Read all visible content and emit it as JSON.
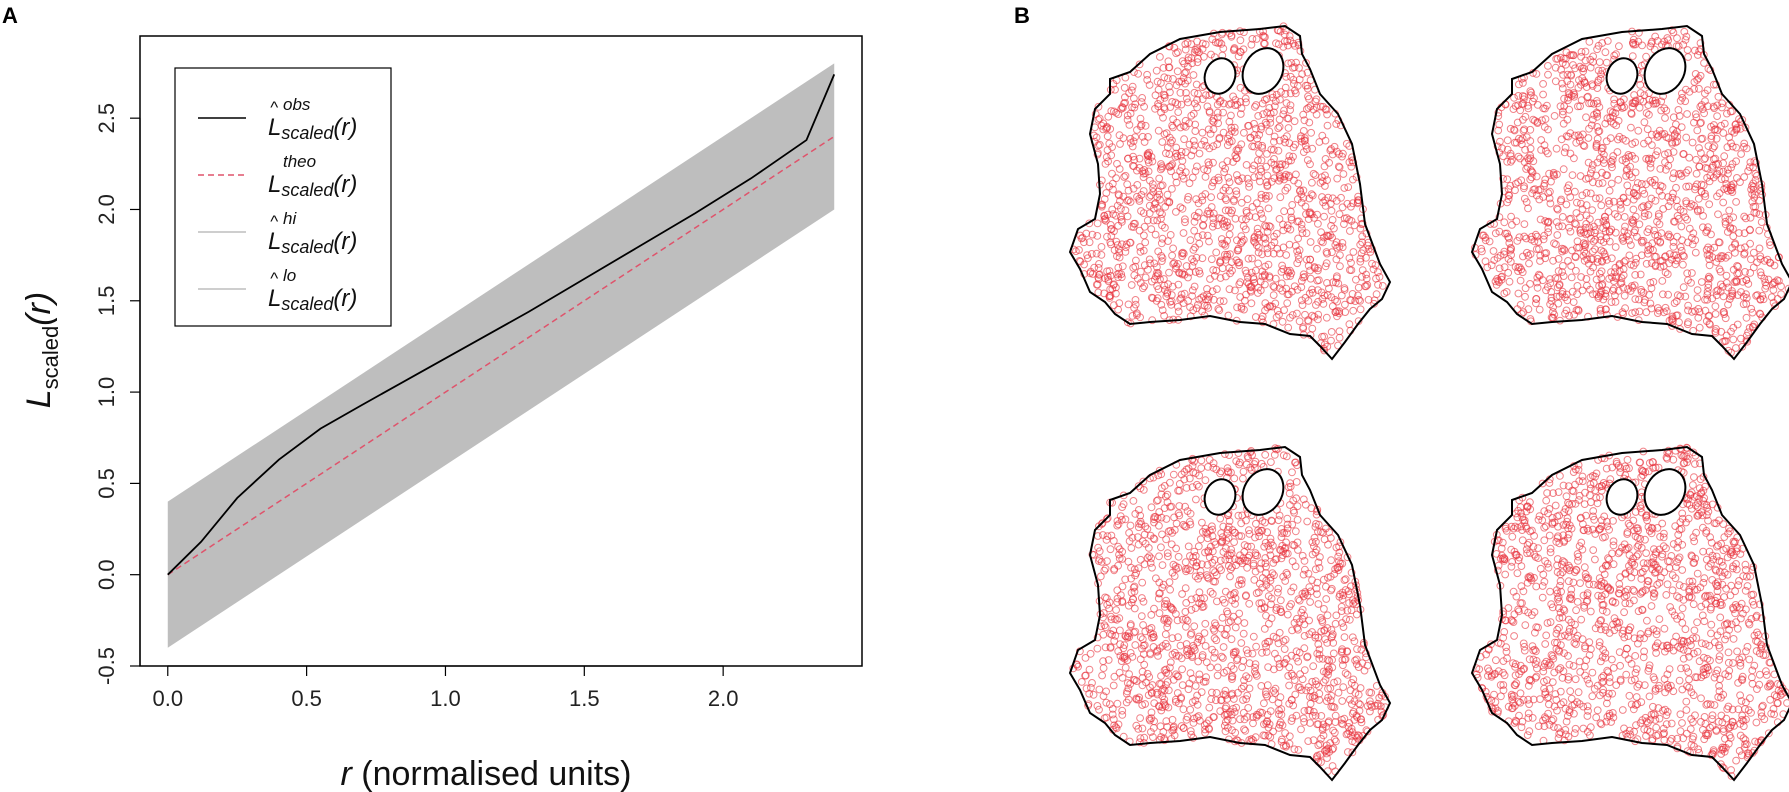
{
  "panels": {
    "a_label": "A",
    "b_label": "B"
  },
  "chart_data": {
    "type": "line",
    "title": "",
    "xlabel_italic": "r",
    "xlabel_rest": " (normalised units)",
    "ylabel_main": "L",
    "ylabel_sub": "scaled",
    "ylabel_arg": "(r)",
    "xlim": [
      -0.1,
      2.5
    ],
    "ylim": [
      -0.5,
      2.95
    ],
    "xticks": [
      "0.0",
      "0.5",
      "1.0",
      "1.5",
      "2.0"
    ],
    "yticks": [
      "-0.5",
      "0.0",
      "0.5",
      "1.0",
      "1.5",
      "2.0",
      "2.5"
    ],
    "grid": false,
    "legend_position": "top-left",
    "colors": {
      "obs": "#000000",
      "theo": "#df536b",
      "envelope": "#bebebe"
    },
    "series": [
      {
        "key": "obs",
        "style": "solid",
        "label_main": "L",
        "label_sup": "obs",
        "label_sub": "scaled",
        "label_arg": "(r)",
        "x": [
          0.0,
          0.12,
          0.25,
          0.4,
          0.55,
          0.7,
          0.9,
          1.1,
          1.3,
          1.5,
          1.7,
          1.9,
          2.1,
          2.3,
          2.4
        ],
        "y": [
          0.0,
          0.18,
          0.42,
          0.63,
          0.8,
          0.93,
          1.1,
          1.27,
          1.44,
          1.62,
          1.8,
          1.98,
          2.17,
          2.38,
          2.74
        ]
      },
      {
        "key": "theo",
        "style": "dashed",
        "label_main": "L",
        "label_sup": "theo",
        "label_sub": "scaled",
        "label_arg": "(r)",
        "x": [
          0.0,
          2.4
        ],
        "y": [
          0.0,
          2.4
        ]
      },
      {
        "key": "hi",
        "style": "envelope",
        "label_main": "L",
        "label_sup": "hi",
        "label_sub": "scaled",
        "label_arg": "(r)",
        "x": [
          0.0,
          2.4
        ],
        "y": [
          0.4,
          2.8
        ]
      },
      {
        "key": "lo",
        "style": "envelope",
        "label_main": "L",
        "label_sup": "lo",
        "label_sub": "scaled",
        "label_arg": "(r)",
        "x": [
          0.0,
          2.4
        ],
        "y": [
          -0.4,
          2.0
        ]
      }
    ]
  },
  "maps": {
    "count": 4,
    "point_color": "#e8303a",
    "outline_color": "#000000"
  }
}
